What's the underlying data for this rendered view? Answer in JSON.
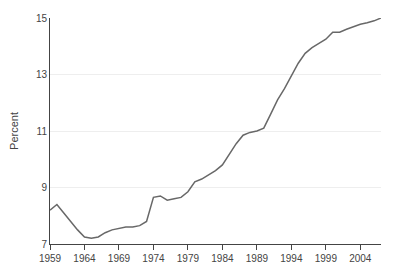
{
  "chart_data": {
    "type": "line",
    "ylabel": "Percent",
    "x": [
      1959,
      1960,
      1961,
      1962,
      1963,
      1964,
      1965,
      1966,
      1967,
      1968,
      1969,
      1970,
      1971,
      1972,
      1973,
      1974,
      1975,
      1976,
      1977,
      1978,
      1979,
      1980,
      1981,
      1982,
      1983,
      1984,
      1985,
      1986,
      1987,
      1988,
      1989,
      1990,
      1991,
      1992,
      1993,
      1994,
      1995,
      1996,
      1997,
      1998,
      1999,
      2000,
      2001,
      2002,
      2003,
      2004,
      2005,
      2006,
      2007
    ],
    "values": [
      8.2,
      8.4,
      8.1,
      7.8,
      7.5,
      7.25,
      7.2,
      7.25,
      7.4,
      7.5,
      7.55,
      7.6,
      7.6,
      7.65,
      7.8,
      8.65,
      8.7,
      8.55,
      8.6,
      8.65,
      8.85,
      9.2,
      9.3,
      9.45,
      9.6,
      9.8,
      10.2,
      10.55,
      10.85,
      10.95,
      11.0,
      11.1,
      11.6,
      12.1,
      12.5,
      12.95,
      13.4,
      13.75,
      13.95,
      14.1,
      14.25,
      14.5,
      14.5,
      14.6,
      14.7,
      14.78,
      14.83,
      14.9,
      15.0
    ],
    "color": "#686868",
    "xlim": [
      1959,
      2007
    ],
    "ylim": [
      7,
      15
    ],
    "xticks": [
      1959,
      1964,
      1969,
      1974,
      1979,
      1984,
      1989,
      1994,
      1999,
      2004
    ],
    "yticks": [
      7,
      9,
      11,
      13,
      15
    ],
    "grid": true
  }
}
